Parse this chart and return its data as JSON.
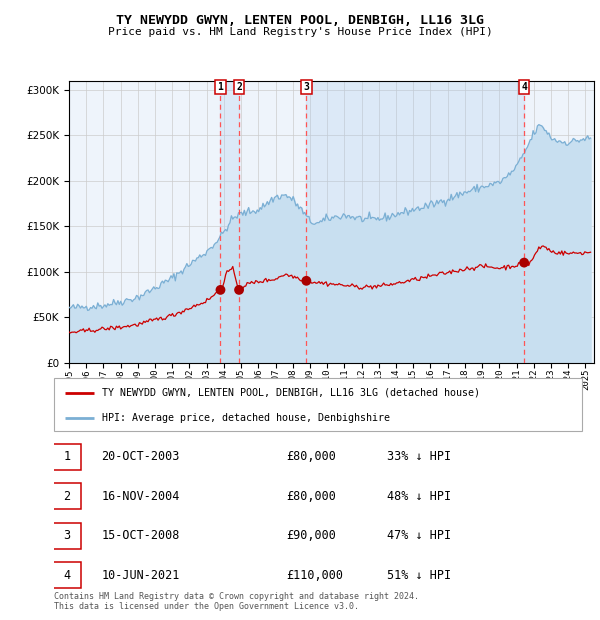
{
  "title": "TY NEWYDD GWYN, LENTEN POOL, DENBIGH, LL16 3LG",
  "subtitle": "Price paid vs. HM Land Registry's House Price Index (HPI)",
  "legend_line1": "TY NEWYDD GWYN, LENTEN POOL, DENBIGH, LL16 3LG (detached house)",
  "legend_line2": "HPI: Average price, detached house, Denbighshire",
  "footer1": "Contains HM Land Registry data © Crown copyright and database right 2024.",
  "footer2": "This data is licensed under the Open Government Licence v3.0.",
  "transactions": [
    {
      "num": 1,
      "date": "20-OCT-2003",
      "price": 80000,
      "price_str": "£80,000",
      "pct": "33%",
      "x_year": 2003.8
    },
    {
      "num": 2,
      "date": "16-NOV-2004",
      "price": 80000,
      "price_str": "£80,000",
      "pct": "48%",
      "x_year": 2004.88
    },
    {
      "num": 3,
      "date": "15-OCT-2008",
      "price": 90000,
      "price_str": "£90,000",
      "pct": "47%",
      "x_year": 2008.79
    },
    {
      "num": 4,
      "date": "10-JUN-2021",
      "price": 110000,
      "price_str": "£110,000",
      "pct": "51%",
      "x_year": 2021.44
    }
  ],
  "hpi_color": "#7bafd4",
  "hpi_fill_color": "#c8dff0",
  "price_color": "#cc0000",
  "dot_color": "#aa0000",
  "vline_color": "#ff5555",
  "shade_color": "#c8dff0",
  "grid_color": "#cccccc",
  "bg_color": "#eef4fb",
  "border_color": "#aaaaaa",
  "ylim": [
    0,
    310000
  ],
  "xlim_start": 1995.0,
  "xlim_end": 2025.5,
  "yticks": [
    0,
    50000,
    100000,
    150000,
    200000,
    250000,
    300000
  ],
  "hpi_anchors": [
    [
      1995.0,
      60000
    ],
    [
      1996.0,
      61500
    ],
    [
      1997.0,
      63000
    ],
    [
      1998.0,
      67000
    ],
    [
      1999.0,
      72000
    ],
    [
      2000.0,
      82000
    ],
    [
      2001.0,
      93000
    ],
    [
      2002.0,
      108000
    ],
    [
      2003.0,
      122000
    ],
    [
      2003.8,
      138000
    ],
    [
      2004.5,
      158000
    ],
    [
      2004.9,
      163000
    ],
    [
      2005.5,
      166000
    ],
    [
      2006.0,
      168000
    ],
    [
      2007.0,
      182000
    ],
    [
      2007.6,
      184000
    ],
    [
      2008.0,
      179000
    ],
    [
      2008.5,
      168000
    ],
    [
      2009.0,
      155000
    ],
    [
      2009.5,
      153000
    ],
    [
      2010.0,
      158000
    ],
    [
      2010.5,
      160000
    ],
    [
      2011.0,
      162000
    ],
    [
      2011.5,
      160000
    ],
    [
      2012.0,
      158000
    ],
    [
      2012.5,
      157000
    ],
    [
      2013.0,
      158000
    ],
    [
      2013.5,
      160000
    ],
    [
      2014.0,
      163000
    ],
    [
      2015.0,
      168000
    ],
    [
      2016.0,
      173000
    ],
    [
      2017.0,
      180000
    ],
    [
      2018.0,
      187000
    ],
    [
      2019.0,
      193000
    ],
    [
      2020.0,
      198000
    ],
    [
      2020.5,
      205000
    ],
    [
      2021.0,
      215000
    ],
    [
      2021.5,
      232000
    ],
    [
      2022.0,
      252000
    ],
    [
      2022.3,
      260000
    ],
    [
      2022.6,
      258000
    ],
    [
      2023.0,
      247000
    ],
    [
      2023.5,
      243000
    ],
    [
      2024.0,
      242000
    ],
    [
      2024.5,
      244000
    ],
    [
      2025.0,
      246000
    ]
  ],
  "price_anchors": [
    [
      1995.0,
      33000
    ],
    [
      1996.0,
      35000
    ],
    [
      1997.0,
      37000
    ],
    [
      1998.0,
      39000
    ],
    [
      1999.0,
      42000
    ],
    [
      2000.0,
      47000
    ],
    [
      2001.0,
      52000
    ],
    [
      2002.0,
      60000
    ],
    [
      2003.0,
      68000
    ],
    [
      2003.8,
      80000
    ],
    [
      2004.2,
      100000
    ],
    [
      2004.5,
      103000
    ],
    [
      2004.88,
      80000
    ],
    [
      2005.2,
      85000
    ],
    [
      2005.5,
      87000
    ],
    [
      2006.0,
      89000
    ],
    [
      2007.0,
      92000
    ],
    [
      2007.5,
      97000
    ],
    [
      2008.0,
      95000
    ],
    [
      2008.5,
      92000
    ],
    [
      2008.79,
      90000
    ],
    [
      2009.0,
      89000
    ],
    [
      2010.0,
      87000
    ],
    [
      2011.0,
      85000
    ],
    [
      2012.0,
      83000
    ],
    [
      2013.0,
      84000
    ],
    [
      2014.0,
      87000
    ],
    [
      2015.0,
      91000
    ],
    [
      2016.0,
      95000
    ],
    [
      2017.0,
      99000
    ],
    [
      2018.0,
      103000
    ],
    [
      2019.0,
      106000
    ],
    [
      2020.0,
      104000
    ],
    [
      2021.0,
      107000
    ],
    [
      2021.44,
      110000
    ],
    [
      2021.7,
      108000
    ],
    [
      2022.0,
      116000
    ],
    [
      2022.3,
      126000
    ],
    [
      2022.6,
      128000
    ],
    [
      2022.9,
      124000
    ],
    [
      2023.0,
      122000
    ],
    [
      2023.5,
      121000
    ],
    [
      2024.0,
      120000
    ],
    [
      2025.0,
      121000
    ]
  ]
}
